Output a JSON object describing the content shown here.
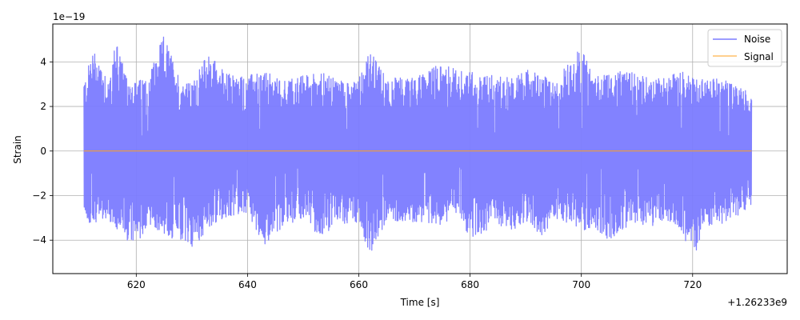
{
  "chart_data": {
    "type": "line",
    "xlabel": "Time [s]",
    "ylabel": "Strain",
    "x_offset_label": "+1.26233e9",
    "y_scale_label": "1e−19",
    "xlim": [
      605,
      737
    ],
    "ylim": [
      -5.5,
      5.7
    ],
    "xticks": [
      620,
      640,
      660,
      680,
      700,
      720
    ],
    "xtick_labels": [
      "620",
      "640",
      "660",
      "680",
      "700",
      "720"
    ],
    "yticks": [
      -4,
      -2,
      0,
      2,
      4
    ],
    "ytick_labels": [
      "−4",
      "−2",
      "0",
      "2",
      "4"
    ],
    "grid": true,
    "legend_position": "top-right",
    "series": [
      {
        "name": "Noise",
        "color": "#7b7bff",
        "x_range": [
          610.6,
          730.6
        ],
        "envelope_x": [
          611,
          612,
          613,
          615,
          616.5,
          618,
          620,
          622,
          625,
          628,
          630,
          633,
          636,
          640,
          643,
          646,
          650,
          653,
          656,
          660,
          662,
          665,
          670,
          675,
          678,
          680,
          685,
          688,
          690,
          693,
          695,
          700,
          702,
          705,
          710,
          713,
          715,
          718,
          720,
          722,
          725,
          728,
          730
        ],
        "envelope_upper": [
          3.3,
          4.6,
          4.4,
          3.3,
          5.2,
          3.4,
          3.1,
          3.4,
          5.2,
          3.2,
          3.0,
          4.5,
          3.5,
          3.4,
          3.6,
          3.2,
          3.4,
          3.6,
          3.2,
          3.4,
          4.5,
          3.3,
          3.3,
          4.0,
          3.6,
          3.6,
          3.4,
          3.3,
          3.7,
          3.4,
          3.1,
          4.7,
          3.5,
          3.6,
          3.5,
          3.2,
          3.4,
          3.6,
          3.4,
          3.2,
          3.3,
          3.0,
          2.7
        ],
        "envelope_lower": [
          -2.9,
          -3.8,
          -3.0,
          -3.1,
          -3.7,
          -3.9,
          -4.4,
          -3.3,
          -3.8,
          -4.1,
          -4.4,
          -3.5,
          -3.0,
          -2.8,
          -4.2,
          -3.5,
          -3.0,
          -3.9,
          -3.3,
          -3.2,
          -4.8,
          -3.1,
          -3.2,
          -3.3,
          -2.8,
          -4.0,
          -3.3,
          -3.6,
          -3.1,
          -3.9,
          -3.0,
          -3.6,
          -3.4,
          -4.0,
          -3.3,
          -3.5,
          -3.0,
          -3.6,
          -5.0,
          -3.4,
          -3.3,
          -2.9,
          -2.7
        ]
      },
      {
        "name": "Signal",
        "color": "#ff9f1c",
        "x": [
          610.6,
          730.6
        ],
        "values": [
          0.0,
          0.0
        ]
      }
    ]
  }
}
